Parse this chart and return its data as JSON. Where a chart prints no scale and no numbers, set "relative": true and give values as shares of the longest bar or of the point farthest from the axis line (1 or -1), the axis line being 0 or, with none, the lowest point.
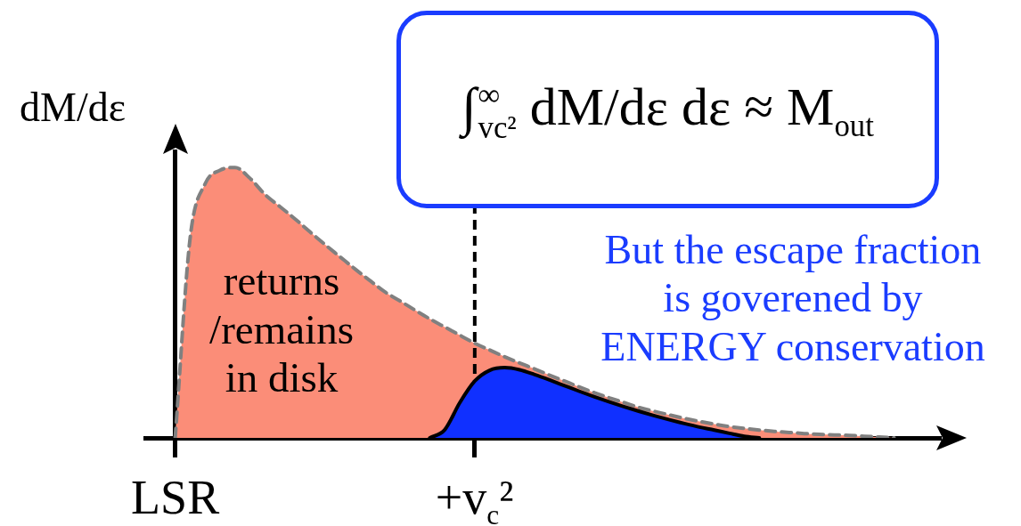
{
  "chart_data": {
    "type": "area",
    "relative": true,
    "ylabel": "dM/dε",
    "categories": [
      null,
      null,
      "LSR",
      null,
      null,
      null,
      null,
      null,
      null,
      null,
      null,
      null,
      null,
      null,
      null,
      null,
      null,
      null,
      null,
      null,
      null,
      null,
      "+v$_{c}$²",
      null,
      null,
      null,
      null,
      null,
      null,
      null,
      null,
      null,
      null,
      null,
      null,
      null,
      null,
      null,
      null,
      null,
      null,
      null,
      null,
      null,
      null,
      null,
      null,
      null,
      null,
      null,
      null,
      null,
      null,
      null
    ],
    "series": [
      {
        "color": "#fb8d78",
        "line_style": "dashed",
        "values": [
          null,
          null,
          0,
          0.74,
          0.94,
          0.99,
          1,
          0.96,
          0.9,
          0.855,
          0.81,
          0.762,
          0.715,
          0.67,
          0.625,
          0.582,
          0.54,
          0.507,
          0.473,
          0.44,
          0.41,
          0.38,
          0.35,
          0.325,
          0.3,
          0.277,
          0.255,
          0.232,
          0.21,
          0.188,
          0.167,
          0.148,
          0.13,
          0.112,
          0.098,
          0.085,
          0.072,
          0.061,
          0.051,
          0.042,
          0.035,
          0.029,
          0.024,
          0.02,
          0.016,
          0.013,
          0.011,
          0.009,
          0.006,
          0.003,
          0,
          null,
          null,
          null
        ]
      },
      {
        "color": "#1030ff",
        "line_style": "solid",
        "values": [
          null,
          null,
          null,
          null,
          null,
          null,
          null,
          null,
          null,
          null,
          null,
          null,
          null,
          null,
          null,
          null,
          null,
          null,
          null,
          0,
          0.03,
          0.13,
          0.21,
          0.25,
          0.26,
          0.252,
          0.234,
          0.214,
          0.193,
          0.172,
          0.152,
          0.133,
          0.115,
          0.098,
          0.082,
          0.067,
          0.053,
          0.04,
          0.029,
          0.017,
          0.006,
          0,
          null,
          null,
          null,
          null,
          null,
          null,
          null,
          null,
          null,
          null,
          null,
          null
        ]
      }
    ],
    "ref_lines": [
      {
        "axis": "x",
        "value": "+v$_{c}$²",
        "color": "#000000",
        "line_style": "dashed"
      }
    ],
    "annotations": [
      "∫$_{vc²}$$^{∞}$ dM/dε dε ≈ M$_{out}$",
      "But the escape fraction\nis goverened by\nENERGY conservation",
      "returns\n/remains\nin disk"
    ]
  }
}
